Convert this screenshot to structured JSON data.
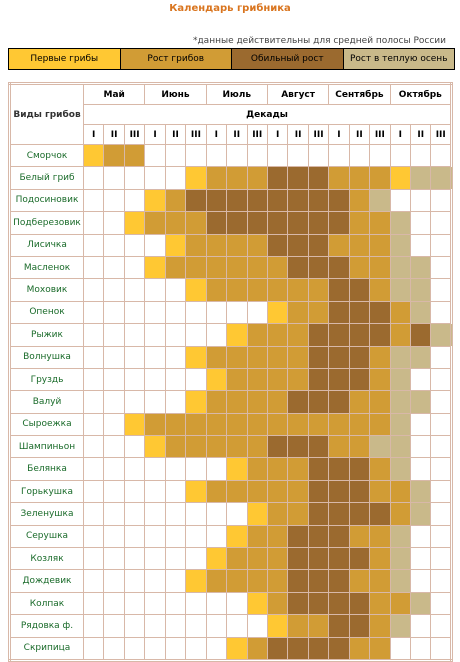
{
  "header": {
    "title": "Календарь грибника",
    "note": "*данные действительны для средней полосы России"
  },
  "legend": [
    {
      "label": "Первые грибы",
      "color": "#ffc833"
    },
    {
      "label": "Рост грибов",
      "color": "#d19c35"
    },
    {
      "label": "Обильный рост",
      "color": "#9b6a2f"
    },
    {
      "label": "Рост в теплую осень",
      "color": "#c9b98a"
    }
  ],
  "table": {
    "corner": "Виды грибов",
    "months": [
      "Май",
      "Июнь",
      "Июль",
      "Август",
      "Сентябрь",
      "Октябрь"
    ],
    "decades_title": "Декады",
    "decades": [
      "I",
      "II",
      "III"
    ],
    "rows": [
      {
        "name": "Сморчок",
        "cells": [
          1,
          2,
          2,
          0,
          0,
          0,
          0,
          0,
          0,
          0,
          0,
          0,
          0,
          0,
          0,
          0,
          0,
          0
        ]
      },
      {
        "name": "Белый гриб",
        "cells": [
          0,
          0,
          0,
          0,
          0,
          1,
          2,
          2,
          2,
          3,
          3,
          3,
          2,
          2,
          2,
          1,
          4,
          4
        ]
      },
      {
        "name": "Подосиновик",
        "cells": [
          0,
          0,
          0,
          1,
          2,
          3,
          3,
          3,
          3,
          3,
          3,
          3,
          3,
          2,
          4,
          0,
          0,
          0
        ]
      },
      {
        "name": "Подберезовик",
        "cells": [
          0,
          0,
          1,
          2,
          2,
          2,
          3,
          3,
          3,
          3,
          3,
          3,
          3,
          2,
          2,
          4,
          0,
          0
        ]
      },
      {
        "name": "Лисичка",
        "cells": [
          0,
          0,
          0,
          0,
          1,
          2,
          2,
          2,
          2,
          3,
          3,
          3,
          2,
          2,
          2,
          4,
          0,
          0
        ]
      },
      {
        "name": "Масленок",
        "cells": [
          0,
          0,
          0,
          1,
          2,
          2,
          2,
          2,
          2,
          2,
          3,
          3,
          3,
          2,
          2,
          4,
          4,
          0
        ]
      },
      {
        "name": "Моховик",
        "cells": [
          0,
          0,
          0,
          0,
          0,
          1,
          2,
          2,
          2,
          2,
          2,
          2,
          3,
          3,
          2,
          4,
          4,
          0
        ]
      },
      {
        "name": "Опенок",
        "cells": [
          0,
          0,
          0,
          0,
          0,
          0,
          0,
          0,
          0,
          1,
          2,
          2,
          3,
          3,
          3,
          2,
          4,
          0
        ]
      },
      {
        "name": "Рыжик",
        "cells": [
          0,
          0,
          0,
          0,
          0,
          0,
          0,
          1,
          2,
          2,
          2,
          3,
          3,
          3,
          3,
          2,
          3,
          4
        ]
      },
      {
        "name": "Волнушка",
        "cells": [
          0,
          0,
          0,
          0,
          0,
          1,
          2,
          2,
          2,
          2,
          2,
          3,
          3,
          3,
          2,
          4,
          4,
          0
        ]
      },
      {
        "name": "Груздь",
        "cells": [
          0,
          0,
          0,
          0,
          0,
          0,
          1,
          2,
          2,
          2,
          2,
          3,
          3,
          3,
          2,
          4,
          0,
          0
        ]
      },
      {
        "name": "Валуй",
        "cells": [
          0,
          0,
          0,
          0,
          0,
          1,
          2,
          2,
          2,
          2,
          3,
          3,
          3,
          2,
          2,
          4,
          4,
          0
        ]
      },
      {
        "name": "Сыроежка",
        "cells": [
          0,
          0,
          1,
          2,
          2,
          2,
          2,
          2,
          2,
          2,
          2,
          2,
          2,
          2,
          2,
          4,
          0,
          0
        ]
      },
      {
        "name": "Шампиньон",
        "cells": [
          0,
          0,
          0,
          1,
          2,
          2,
          2,
          2,
          2,
          3,
          3,
          3,
          2,
          2,
          4,
          4,
          0,
          0
        ]
      },
      {
        "name": "Белянка",
        "cells": [
          0,
          0,
          0,
          0,
          0,
          0,
          0,
          1,
          2,
          2,
          2,
          3,
          3,
          3,
          2,
          4,
          0,
          0
        ]
      },
      {
        "name": "Горькушка",
        "cells": [
          0,
          0,
          0,
          0,
          0,
          1,
          2,
          2,
          2,
          2,
          2,
          3,
          3,
          3,
          2,
          2,
          4,
          0
        ]
      },
      {
        "name": "Зеленушка",
        "cells": [
          0,
          0,
          0,
          0,
          0,
          0,
          0,
          0,
          1,
          2,
          2,
          3,
          3,
          3,
          3,
          2,
          4,
          0
        ]
      },
      {
        "name": "Серушка",
        "cells": [
          0,
          0,
          0,
          0,
          0,
          0,
          0,
          1,
          2,
          2,
          3,
          3,
          3,
          2,
          2,
          4,
          0,
          0
        ]
      },
      {
        "name": "Козляк",
        "cells": [
          0,
          0,
          0,
          0,
          0,
          0,
          1,
          2,
          2,
          2,
          3,
          3,
          3,
          3,
          2,
          4,
          0,
          0
        ]
      },
      {
        "name": "Дождевик",
        "cells": [
          0,
          0,
          0,
          0,
          0,
          1,
          2,
          2,
          2,
          2,
          3,
          3,
          3,
          2,
          2,
          4,
          0,
          0
        ]
      },
      {
        "name": "Колпак",
        "cells": [
          0,
          0,
          0,
          0,
          0,
          0,
          0,
          0,
          1,
          2,
          3,
          3,
          3,
          3,
          2,
          2,
          4,
          0
        ]
      },
      {
        "name": "Рядовка ф.",
        "cells": [
          0,
          0,
          0,
          0,
          0,
          0,
          0,
          0,
          0,
          1,
          2,
          2,
          3,
          3,
          2,
          4,
          0,
          0
        ]
      },
      {
        "name": "Скрипица",
        "cells": [
          0,
          0,
          0,
          0,
          0,
          0,
          0,
          1,
          2,
          3,
          3,
          3,
          3,
          2,
          2,
          0,
          0,
          0
        ]
      }
    ]
  }
}
